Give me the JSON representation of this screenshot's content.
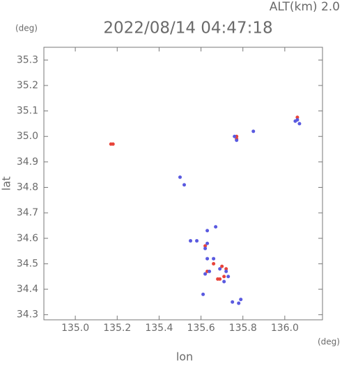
{
  "chart_data": {
    "type": "scatter",
    "title": "2022/08/14 04:47:18",
    "altitude_label": "ALT(km) 2.0",
    "y_unit": "(deg)",
    "x_unit": "(deg)",
    "x_label": "lon",
    "y_label": "lat",
    "xlim": [
      134.85,
      136.18
    ],
    "ylim": [
      34.28,
      35.35
    ],
    "xticks": [
      {
        "value": 135,
        "label": "135.0"
      },
      135.2,
      135.4,
      135.6,
      135.8,
      {
        "value": 136,
        "label": "136.0"
      }
    ],
    "yticks": [
      34.3,
      34.4,
      34.5,
      34.6,
      34.7,
      34.8,
      34.9,
      {
        "value": 35,
        "label": "35.0"
      },
      35.1,
      35.2,
      35.3
    ],
    "series": [
      {
        "color": "#e8443a",
        "x": [
          135.18,
          135.17,
          135.77,
          136.06,
          135.62,
          135.7,
          135.72,
          135.71,
          135.68,
          135.69,
          135.63,
          135.66,
          135.77
        ],
        "values": [
          34.97,
          34.97,
          35.0,
          35.075,
          34.57,
          34.49,
          34.48,
          34.45,
          34.44,
          34.44,
          34.47,
          34.5,
          34.99
        ]
      },
      {
        "color": "#5a5ae0",
        "x": [
          136.05,
          136.07,
          136.06,
          135.85,
          135.76,
          135.77,
          135.5,
          135.52,
          135.55,
          135.58,
          135.63,
          135.62,
          135.63,
          135.66,
          135.62,
          135.64,
          135.72,
          135.73,
          135.69,
          135.71,
          135.75,
          135.79,
          135.78,
          135.63,
          135.67,
          135.61
        ],
        "values": [
          35.06,
          35.05,
          35.065,
          35.02,
          35.0,
          34.985,
          34.84,
          34.81,
          34.59,
          34.59,
          34.58,
          34.56,
          34.52,
          34.52,
          34.46,
          34.47,
          34.47,
          34.45,
          34.48,
          34.43,
          34.35,
          34.36,
          34.345,
          34.63,
          34.645,
          34.38
        ]
      }
    ]
  }
}
